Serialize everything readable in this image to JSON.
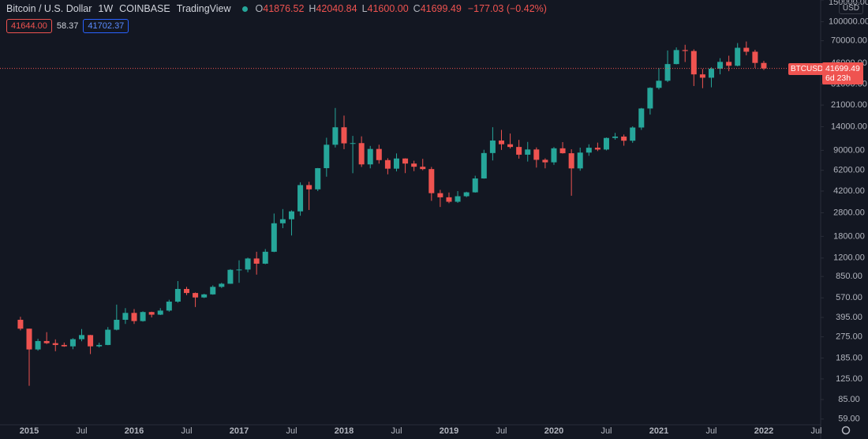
{
  "chart_data": {
    "type": "candlestick",
    "legend": {
      "symbol": "Bitcoin / U.S. Dollar",
      "interval": "1W",
      "exchange": "COINBASE",
      "source": "TradingView",
      "ohlc": [
        {
          "key": "O",
          "value": "41876.52"
        },
        {
          "key": "H",
          "value": "42040.84"
        },
        {
          "key": "L",
          "value": "41600.00"
        },
        {
          "key": "C",
          "value": "41699.49"
        }
      ],
      "change": "−177.03 (−0.42%)",
      "bid": "41644.00",
      "spread": "58.37",
      "ask": "41702.37"
    },
    "currency": "USD",
    "ticker": "BTCUSD",
    "countdown": "6d 23h",
    "last_price": 41699.49,
    "log_scale": true,
    "up_color": "#26a69a",
    "down_color": "#ef5350",
    "ylim": [
      53,
      150000
    ],
    "yticks": [
      {
        "value": 150000,
        "label": "150000.00"
      },
      {
        "value": 100000,
        "label": "100000.00"
      },
      {
        "value": 70000,
        "label": "70000.00"
      },
      {
        "value": 46000,
        "label": "46000.00"
      },
      {
        "value": 31000,
        "label": "31000.00"
      },
      {
        "value": 21000,
        "label": "21000.00"
      },
      {
        "value": 14000,
        "label": "14000.00"
      },
      {
        "value": 9000,
        "label": "9000.00"
      },
      {
        "value": 6200,
        "label": "6200.00"
      },
      {
        "value": 4200,
        "label": "4200.00"
      },
      {
        "value": 2800,
        "label": "2800.00"
      },
      {
        "value": 1800,
        "label": "1800.00"
      },
      {
        "value": 1200,
        "label": "1200.00"
      },
      {
        "value": 850,
        "label": "850.00"
      },
      {
        "value": 570,
        "label": "570.00"
      },
      {
        "value": 395,
        "label": "395.00"
      },
      {
        "value": 275,
        "label": "275.00"
      },
      {
        "value": 185,
        "label": "185.00"
      },
      {
        "value": 125,
        "label": "125.00"
      },
      {
        "value": 85,
        "label": "85.00"
      },
      {
        "value": 59,
        "label": "59.00"
      }
    ],
    "categories": [
      null,
      "2015",
      null,
      null,
      null,
      null,
      null,
      "Jul",
      null,
      null,
      null,
      null,
      null,
      "2016",
      null,
      null,
      null,
      null,
      null,
      "Jul",
      null,
      null,
      null,
      null,
      null,
      "2017",
      null,
      null,
      null,
      null,
      null,
      "Jul",
      null,
      null,
      null,
      null,
      null,
      "2018",
      null,
      null,
      null,
      null,
      null,
      "Jul",
      null,
      null,
      null,
      null,
      null,
      "2019",
      null,
      null,
      null,
      null,
      null,
      "Jul",
      null,
      null,
      null,
      null,
      null,
      "2020",
      null,
      null,
      null,
      null,
      null,
      "Jul",
      null,
      null,
      null,
      null,
      null,
      "2021",
      null,
      null,
      null,
      null,
      null,
      "Jul",
      null,
      null,
      null,
      null,
      null,
      "2022",
      null,
      null,
      null,
      null,
      null,
      "Jul"
    ],
    "open": [
      378,
      320,
      217,
      254,
      244,
      236,
      230,
      263,
      284,
      230,
      236,
      314,
      378,
      430,
      369,
      437,
      416,
      449,
      531,
      673,
      624,
      574,
      608,
      700,
      742,
      963,
      968,
      1190,
      1080,
      1350,
      2300,
      2480,
      2875,
      4700,
      4340,
      6450,
      10000,
      13860,
      10260,
      10310,
      6920,
      9240,
      7500,
      6390,
      7730,
      7030,
      6625,
      6340,
      4040,
      3740,
      3440,
      3815,
      4105,
      5320,
      8560,
      10820,
      10090,
      9590,
      8300,
      9150,
      7540,
      7195,
      9350,
      8530,
      6420,
      8630,
      9450,
      9140,
      11350,
      11650,
      10780,
      13800,
      19700,
      28990,
      33110,
      45240,
      58800,
      57750,
      37300,
      35040,
      41460,
      47130,
      43830,
      61340,
      57000,
      46210,
      null,
      null,
      null,
      null,
      null,
      null
    ],
    "high": [
      400,
      320,
      265,
      300,
      262,
      247,
      268,
      318,
      285,
      246,
      330,
      502,
      470,
      462,
      443,
      440,
      470,
      550,
      780,
      700,
      630,
      615,
      720,
      755,
      975,
      1150,
      1210,
      1350,
      1420,
      2760,
      3000,
      2930,
      4950,
      5000,
      6470,
      11400,
      19890,
      17250,
      11800,
      11700,
      9780,
      10000,
      7770,
      8500,
      7760,
      7410,
      7680,
      6600,
      4300,
      4090,
      4200,
      4150,
      5600,
      9100,
      13880,
      13200,
      12330,
      10950,
      10540,
      9510,
      7750,
      9580,
      10500,
      9190,
      9470,
      10080,
      10400,
      11450,
      12480,
      12100,
      14100,
      19900,
      29300,
      42000,
      58350,
      61800,
      64900,
      59600,
      41300,
      42600,
      50500,
      52900,
      67000,
      69000,
      59100,
      47990,
      null,
      null,
      null,
      null,
      null,
      null
    ],
    "low": [
      310,
      110,
      212,
      240,
      210,
      228,
      218,
      253,
      199,
      225,
      235,
      310,
      350,
      350,
      365,
      395,
      413,
      440,
      520,
      600,
      480,
      568,
      604,
      685,
      740,
      755,
      920,
      880,
      1070,
      1340,
      2100,
      1830,
      2650,
      2950,
      4200,
      5500,
      9500,
      9200,
      5870,
      6600,
      6430,
      7020,
      5750,
      6070,
      5880,
      6100,
      6200,
      3500,
      3120,
      3350,
      3370,
      3750,
      4080,
      5300,
      7450,
      9080,
      9320,
      7710,
      7300,
      6520,
      6430,
      6860,
      8470,
      3850,
      6150,
      8130,
      8880,
      8990,
      10990,
      9820,
      10370,
      13200,
      17580,
      28130,
      32300,
      45000,
      47000,
      30000,
      28800,
      29280,
      37330,
      39600,
      43300,
      53250,
      42000,
      40500,
      null,
      null,
      null,
      null,
      null,
      null
    ],
    "close": [
      320,
      217,
      254,
      244,
      236,
      230,
      263,
      284,
      230,
      236,
      314,
      378,
      430,
      369,
      437,
      416,
      449,
      531,
      673,
      624,
      574,
      608,
      700,
      742,
      963,
      968,
      1190,
      1080,
      1350,
      2300,
      2480,
      2875,
      4700,
      4340,
      6450,
      10000,
      13860,
      10260,
      10310,
      6920,
      9240,
      7500,
      6390,
      7730,
      7030,
      6625,
      6340,
      4040,
      3740,
      3440,
      3815,
      4105,
      5320,
      8560,
      10820,
      10090,
      9590,
      8300,
      9150,
      7540,
      7195,
      9350,
      8530,
      6420,
      8630,
      9450,
      9140,
      11350,
      11650,
      10780,
      13800,
      19700,
      28990,
      33110,
      45240,
      58800,
      57750,
      37300,
      35040,
      41460,
      47130,
      43830,
      61340,
      57000,
      46210,
      41699.49,
      null,
      null,
      null,
      null,
      null,
      null
    ]
  }
}
